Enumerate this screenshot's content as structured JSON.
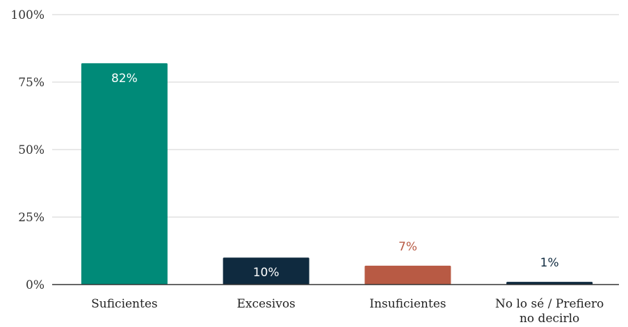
{
  "chart_data": {
    "type": "bar",
    "categories": [
      [
        "Suficientes"
      ],
      [
        "Excesivos"
      ],
      [
        "Insuficientes"
      ],
      [
        "No lo sé / Prefiero",
        "no decirlo"
      ]
    ],
    "values": [
      82,
      10,
      7,
      1
    ],
    "data_labels": [
      "82%",
      "10%",
      "7%",
      "1%"
    ],
    "bar_colors": [
      "#008a78",
      "#0f2a3f",
      "#b85a44",
      "#0f2a3f"
    ],
    "label_colors": [
      "#ffffff",
      "#ffffff",
      "#b85a44",
      "#0f2a3f"
    ],
    "label_inside": [
      true,
      true,
      false,
      false
    ],
    "yticks": [
      0,
      25,
      50,
      75,
      100
    ],
    "ytick_labels": [
      "0%",
      "25%",
      "50%",
      "75%",
      "100%"
    ],
    "ylim": [
      0,
      100
    ],
    "grid": true,
    "title": "",
    "xlabel": "",
    "ylabel": ""
  }
}
